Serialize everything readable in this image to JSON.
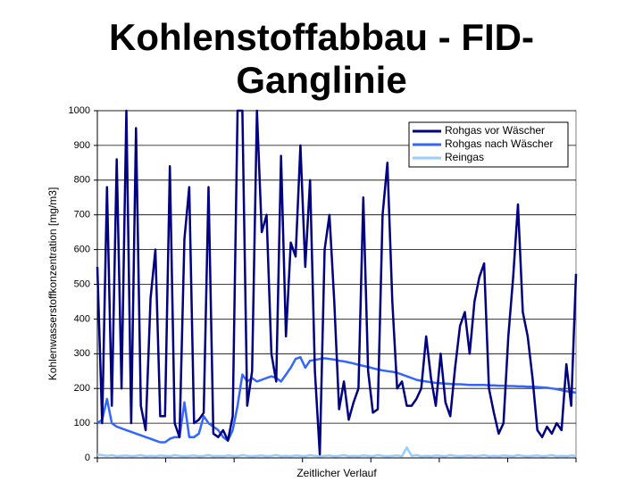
{
  "chart_data": {
    "type": "line",
    "title": "Kohlenstoffabbau - FID-Ganglinie",
    "x_label": "Zeitlicher Verlauf",
    "y_label": "Kohlenwasserstoffkonzentration [mg/m3]",
    "ylim": [
      0,
      1000
    ],
    "yticks": [
      0,
      100,
      200,
      300,
      400,
      500,
      600,
      700,
      800,
      900,
      1000
    ],
    "grid": true,
    "legend": "upper right",
    "series": [
      {
        "name": "Rohgas vor Wäscher",
        "color": "#000080",
        "values": [
          550,
          100,
          780,
          150,
          860,
          200,
          1000,
          100,
          950,
          150,
          80,
          460,
          600,
          120,
          120,
          840,
          100,
          60,
          630,
          780,
          100,
          110,
          130,
          780,
          70,
          60,
          80,
          50,
          120,
          1000,
          1000,
          150,
          250,
          1000,
          650,
          700,
          300,
          220,
          870,
          350,
          620,
          580,
          900,
          550,
          800,
          250,
          10,
          600,
          700,
          450,
          140,
          220,
          110,
          160,
          200,
          750,
          250,
          130,
          140,
          700,
          850,
          450,
          200,
          220,
          150,
          150,
          170,
          200,
          350,
          230,
          150,
          300,
          160,
          120,
          260,
          380,
          420,
          300,
          450,
          520,
          560,
          200,
          130,
          70,
          100,
          350,
          520,
          730,
          420,
          350,
          230,
          80,
          60,
          90,
          70,
          100,
          80,
          270,
          150,
          530
        ]
      },
      {
        "name": "Rohgas nach Wäscher",
        "color": "#3366ff",
        "values": [
          100,
          110,
          170,
          100,
          90,
          85,
          80,
          75,
          70,
          65,
          60,
          55,
          50,
          45,
          45,
          55,
          60,
          60,
          160,
          60,
          60,
          70,
          120,
          100,
          90,
          80,
          60,
          50,
          80,
          150,
          240,
          220,
          230,
          220,
          225,
          230,
          235,
          230,
          220,
          240,
          260,
          285,
          290,
          260,
          280,
          282,
          285,
          287,
          285,
          283,
          280,
          278,
          275,
          272,
          268,
          265,
          262,
          258,
          255,
          252,
          250,
          248,
          245,
          240,
          235,
          230,
          225,
          222,
          220,
          218,
          216,
          215,
          214,
          213,
          212,
          212,
          211,
          210,
          210,
          210,
          210,
          209,
          209,
          208,
          208,
          207,
          207,
          206,
          206,
          205,
          205,
          204,
          203,
          202,
          200,
          198,
          195,
          192,
          190,
          188
        ]
      },
      {
        "name": "Reingas",
        "color": "#99ccff",
        "values": [
          10,
          8,
          6,
          8,
          5,
          6,
          7,
          5,
          6,
          8,
          5,
          6,
          5,
          7,
          6,
          5,
          8,
          6,
          5,
          6,
          7,
          5,
          6,
          8,
          5,
          6,
          5,
          7,
          6,
          5,
          8,
          6,
          5,
          6,
          7,
          5,
          6,
          8,
          5,
          6,
          5,
          7,
          6,
          5,
          8,
          6,
          5,
          6,
          7,
          5,
          6,
          8,
          5,
          6,
          5,
          7,
          6,
          5,
          8,
          6,
          5,
          6,
          7,
          5,
          30,
          6,
          8,
          5,
          6,
          5,
          7,
          6,
          5,
          8,
          6,
          5,
          6,
          7,
          5,
          6,
          8,
          5,
          6,
          5,
          7,
          6,
          5,
          8,
          6,
          5,
          6,
          7,
          5,
          6,
          8,
          5,
          6,
          5,
          7,
          6
        ]
      }
    ]
  }
}
